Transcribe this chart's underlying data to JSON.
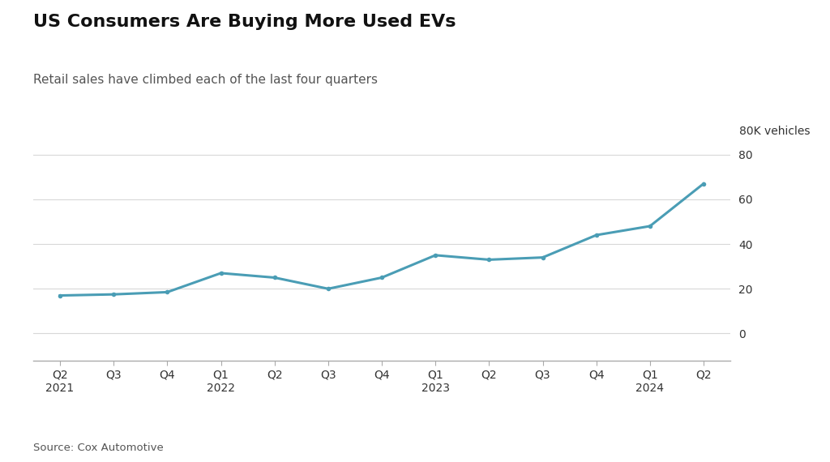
{
  "title": "US Consumers Are Buying More Used EVs",
  "subtitle": "Retail sales have climbed each of the last four quarters",
  "source": "Source: Cox Automotive",
  "ylabel_annotation": "80K vehicles",
  "background_color": "#ffffff",
  "line_color": "#4a9db5",
  "line_width": 2.2,
  "x_labels": [
    "Q2\n2021",
    "Q3",
    "Q4",
    "Q1\n2022",
    "Q2",
    "Q3",
    "Q4",
    "Q1\n2023",
    "Q2",
    "Q3",
    "Q4",
    "Q1\n2024",
    "Q2"
  ],
  "y_values": [
    17,
    17.5,
    18.5,
    27,
    25,
    20,
    25,
    35,
    33,
    34,
    44,
    48,
    67
  ],
  "yticks": [
    0,
    20,
    40,
    60,
    80
  ],
  "ylim": [
    -12,
    83
  ],
  "marker_size": 4,
  "marker_color": "#4a9db5",
  "title_fontsize": 16,
  "subtitle_fontsize": 11,
  "source_fontsize": 9.5,
  "tick_label_fontsize": 10,
  "ytick_label_fontsize": 10,
  "grid_color": "#d8d8d8",
  "grid_linewidth": 0.8,
  "title_color": "#111111",
  "subtitle_color": "#555555",
  "source_color": "#555555",
  "tick_color": "#333333",
  "spine_color": "#aaaaaa"
}
